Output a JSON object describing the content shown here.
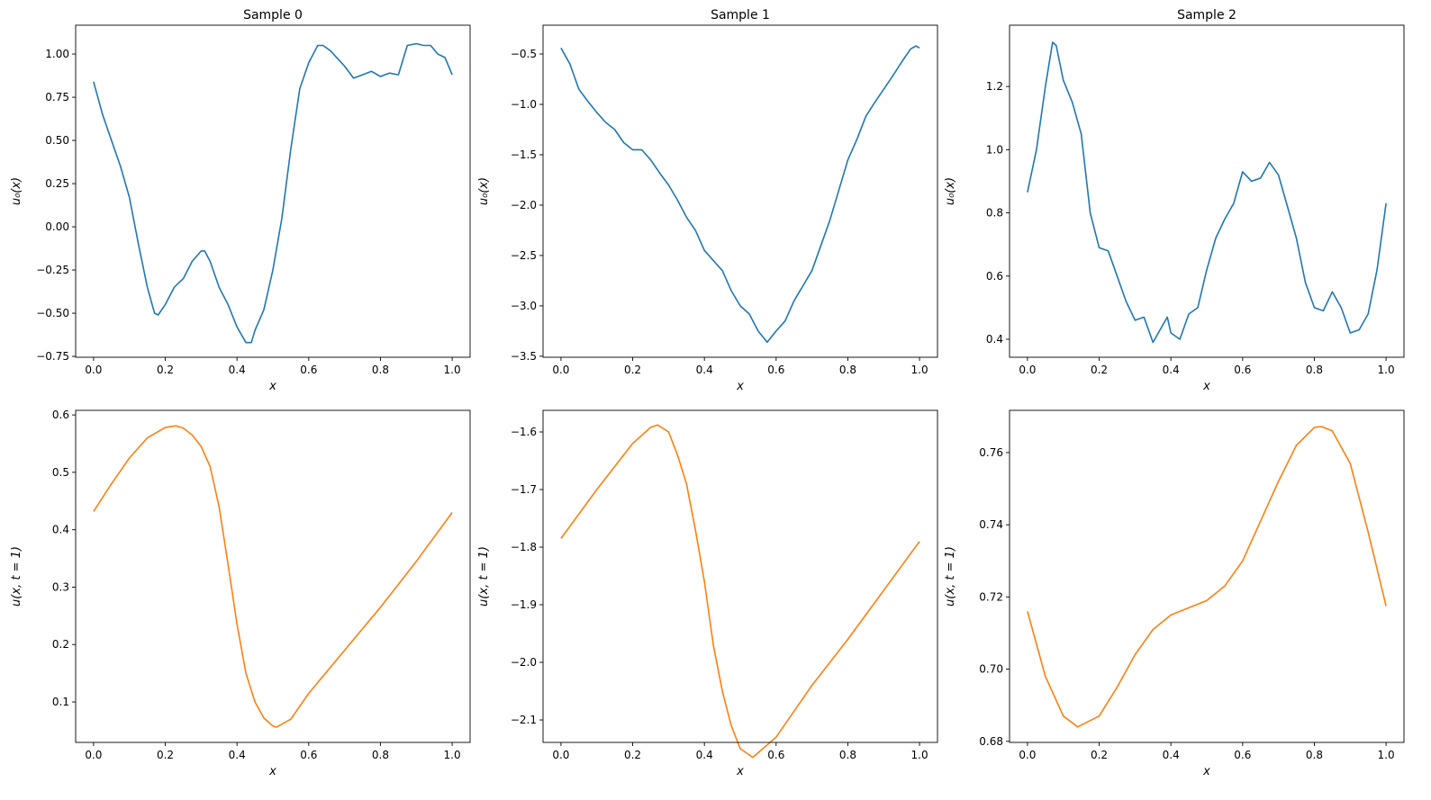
{
  "chart_data": [
    {
      "type": "line",
      "title": "Sample 0",
      "xlabel": "x",
      "ylabel": "u₀(x)",
      "color": "#1f77b4",
      "xlim": [
        -0.05,
        1.05
      ],
      "ylim": [
        -0.755,
        1.167
      ],
      "xticks": [
        "0.0",
        "0.2",
        "0.4",
        "0.6",
        "0.8",
        "1.0"
      ],
      "yticks": [
        "−0.75",
        "−0.50",
        "−0.25",
        "0.00",
        "0.25",
        "0.50",
        "0.75",
        "1.00"
      ],
      "x": [
        0,
        0.025,
        0.05,
        0.075,
        0.1,
        0.125,
        0.15,
        0.17,
        0.18,
        0.2,
        0.225,
        0.25,
        0.275,
        0.3,
        0.31,
        0.325,
        0.35,
        0.375,
        0.4,
        0.425,
        0.44,
        0.45,
        0.475,
        0.5,
        0.525,
        0.55,
        0.575,
        0.6,
        0.625,
        0.64,
        0.66,
        0.7,
        0.725,
        0.75,
        0.775,
        0.8,
        0.825,
        0.85,
        0.875,
        0.9,
        0.92,
        0.94,
        0.96,
        0.98,
        1.0
      ],
      "y": [
        0.84,
        0.65,
        0.5,
        0.35,
        0.17,
        -0.1,
        -0.35,
        -0.5,
        -0.51,
        -0.45,
        -0.35,
        -0.3,
        -0.2,
        -0.14,
        -0.14,
        -0.2,
        -0.35,
        -0.45,
        -0.58,
        -0.67,
        -0.67,
        -0.6,
        -0.48,
        -0.25,
        0.05,
        0.45,
        0.8,
        0.95,
        1.05,
        1.05,
        1.02,
        0.93,
        0.86,
        0.88,
        0.9,
        0.87,
        0.89,
        0.88,
        1.05,
        1.06,
        1.05,
        1.05,
        1.0,
        0.98,
        0.88
      ]
    },
    {
      "type": "line",
      "title": "Sample 1",
      "xlabel": "x",
      "ylabel": "u₀(x)",
      "color": "#1f77b4",
      "xlim": [
        -0.05,
        1.05
      ],
      "ylim": [
        -3.51,
        -0.214
      ],
      "xticks": [
        "0.0",
        "0.2",
        "0.4",
        "0.6",
        "0.8",
        "1.0"
      ],
      "yticks": [
        "−3.5",
        "−3.0",
        "−2.5",
        "−2.0",
        "−1.5",
        "−1.0",
        "−0.5"
      ],
      "x": [
        0,
        0.025,
        0.05,
        0.075,
        0.1,
        0.125,
        0.15,
        0.175,
        0.2,
        0.225,
        0.25,
        0.275,
        0.3,
        0.325,
        0.35,
        0.375,
        0.4,
        0.425,
        0.45,
        0.475,
        0.5,
        0.525,
        0.55,
        0.575,
        0.6,
        0.625,
        0.65,
        0.675,
        0.7,
        0.725,
        0.75,
        0.775,
        0.8,
        0.825,
        0.85,
        0.875,
        0.9,
        0.925,
        0.95,
        0.975,
        0.99,
        1.0
      ],
      "y": [
        -0.44,
        -0.6,
        -0.85,
        -0.97,
        -1.08,
        -1.18,
        -1.25,
        -1.38,
        -1.45,
        -1.45,
        -1.55,
        -1.68,
        -1.8,
        -1.95,
        -2.12,
        -2.25,
        -2.45,
        -2.55,
        -2.65,
        -2.85,
        -3.0,
        -3.08,
        -3.25,
        -3.36,
        -3.25,
        -3.15,
        -2.95,
        -2.8,
        -2.65,
        -2.4,
        -2.15,
        -1.85,
        -1.55,
        -1.35,
        -1.12,
        -0.98,
        -0.85,
        -0.72,
        -0.58,
        -0.45,
        -0.42,
        -0.44
      ]
    },
    {
      "type": "line",
      "title": "Sample 2",
      "xlabel": "x",
      "ylabel": "u₀(x)",
      "color": "#1f77b4",
      "xlim": [
        -0.05,
        1.05
      ],
      "ylim": [
        0.343,
        1.394
      ],
      "xticks": [
        "0.0",
        "0.2",
        "0.4",
        "0.6",
        "0.8",
        "1.0"
      ],
      "yticks": [
        "0.4",
        "0.6",
        "0.8",
        "1.0",
        "1.2"
      ],
      "x": [
        0,
        0.025,
        0.05,
        0.07,
        0.08,
        0.1,
        0.125,
        0.15,
        0.175,
        0.2,
        0.225,
        0.25,
        0.275,
        0.3,
        0.325,
        0.35,
        0.375,
        0.39,
        0.4,
        0.425,
        0.45,
        0.475,
        0.5,
        0.525,
        0.55,
        0.575,
        0.6,
        0.625,
        0.65,
        0.675,
        0.7,
        0.725,
        0.75,
        0.775,
        0.8,
        0.825,
        0.85,
        0.875,
        0.9,
        0.925,
        0.95,
        0.975,
        1.0
      ],
      "y": [
        0.865,
        1.0,
        1.2,
        1.34,
        1.33,
        1.22,
        1.15,
        1.05,
        0.8,
        0.69,
        0.68,
        0.6,
        0.52,
        0.46,
        0.47,
        0.39,
        0.44,
        0.47,
        0.42,
        0.4,
        0.48,
        0.5,
        0.62,
        0.72,
        0.78,
        0.83,
        0.93,
        0.9,
        0.91,
        0.96,
        0.92,
        0.82,
        0.72,
        0.58,
        0.5,
        0.49,
        0.55,
        0.5,
        0.42,
        0.43,
        0.48,
        0.62,
        0.83
      ]
    },
    {
      "type": "line",
      "title": "",
      "xlabel": "x",
      "ylabel": "u(x, t = 1)",
      "color": "#ff7f0e",
      "xlim": [
        -0.05,
        1.05
      ],
      "ylim": [
        0.0295,
        0.608
      ],
      "xticks": [
        "0.0",
        "0.2",
        "0.4",
        "0.6",
        "0.8",
        "1.0"
      ],
      "yticks": [
        "0.1",
        "0.2",
        "0.3",
        "0.4",
        "0.5",
        "0.6"
      ],
      "x": [
        0,
        0.05,
        0.1,
        0.15,
        0.2,
        0.23,
        0.25,
        0.275,
        0.3,
        0.325,
        0.35,
        0.375,
        0.4,
        0.425,
        0.45,
        0.475,
        0.5,
        0.51,
        0.55,
        0.6,
        0.7,
        0.8,
        0.9,
        1.0
      ],
      "y": [
        0.432,
        0.48,
        0.525,
        0.56,
        0.578,
        0.581,
        0.577,
        0.565,
        0.545,
        0.51,
        0.44,
        0.34,
        0.235,
        0.15,
        0.1,
        0.072,
        0.058,
        0.056,
        0.07,
        0.115,
        0.19,
        0.265,
        0.345,
        0.43
      ]
    },
    {
      "type": "line",
      "title": "",
      "xlabel": "x",
      "ylabel": "u(x, t = 1)",
      "color": "#ff7f0e",
      "xlim": [
        -0.05,
        1.05
      ],
      "ylim": [
        -2.139,
        -1.5625
      ],
      "xticks": [
        "0.0",
        "0.2",
        "0.4",
        "0.6",
        "0.8",
        "1.0"
      ],
      "yticks": [
        "−2.1",
        "−2.0",
        "−1.9",
        "−1.8",
        "−1.7",
        "−1.6"
      ],
      "x": [
        0,
        0.1,
        0.2,
        0.25,
        0.27,
        0.3,
        0.325,
        0.35,
        0.375,
        0.4,
        0.425,
        0.45,
        0.475,
        0.5,
        0.535,
        0.6,
        0.7,
        0.8,
        0.9,
        1.0
      ],
      "y": [
        -1.785,
        -1.7,
        -1.62,
        -1.592,
        -1.588,
        -1.6,
        -1.64,
        -1.69,
        -1.77,
        -1.86,
        -1.97,
        -2.05,
        -2.11,
        -2.15,
        -2.165,
        -2.13,
        -2.04,
        -1.96,
        -1.875,
        -1.79
      ]
    },
    {
      "type": "line",
      "title": "",
      "xlabel": "x",
      "ylabel": "u(x, t = 1)",
      "color": "#ff7f0e",
      "xlim": [
        -0.05,
        1.05
      ],
      "ylim": [
        0.6797,
        0.7717
      ],
      "xticks": [
        "0.0",
        "0.2",
        "0.4",
        "0.6",
        "0.8",
        "1.0"
      ],
      "yticks": [
        "0.68",
        "0.70",
        "0.72",
        "0.74",
        "0.76"
      ],
      "x": [
        0,
        0.05,
        0.1,
        0.14,
        0.2,
        0.25,
        0.3,
        0.35,
        0.4,
        0.45,
        0.5,
        0.55,
        0.6,
        0.65,
        0.7,
        0.75,
        0.8,
        0.82,
        0.85,
        0.9,
        0.95,
        1.0
      ],
      "y": [
        0.716,
        0.698,
        0.687,
        0.684,
        0.687,
        0.695,
        0.704,
        0.711,
        0.715,
        0.717,
        0.719,
        0.723,
        0.73,
        0.741,
        0.752,
        0.762,
        0.767,
        0.7672,
        0.766,
        0.757,
        0.738,
        0.7175
      ]
    }
  ]
}
